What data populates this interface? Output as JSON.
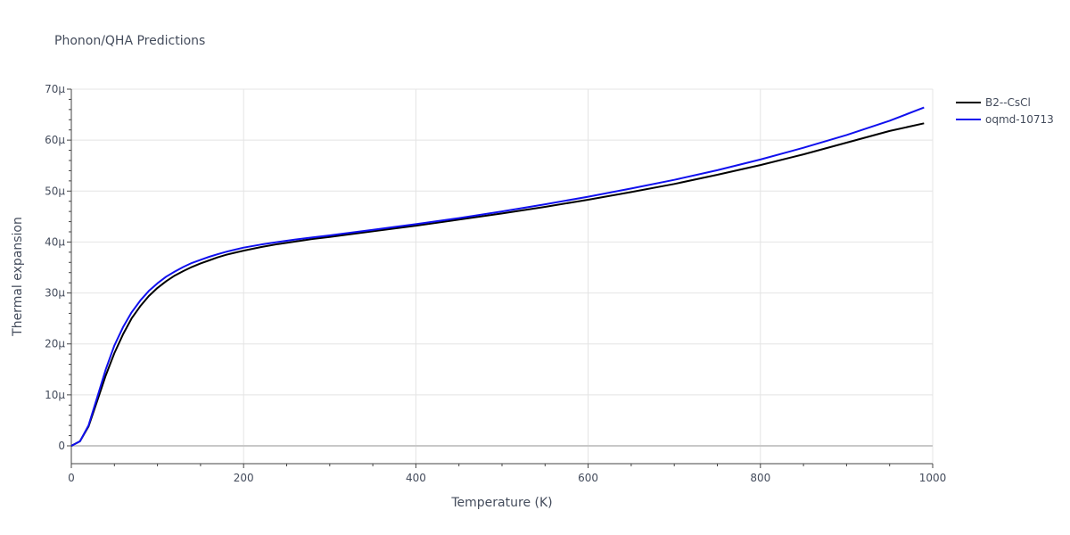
{
  "chart_data": {
    "type": "line",
    "title": "Phonon/QHA Predictions",
    "xlabel": "Temperature (K)",
    "ylabel": "Thermal expansion",
    "xlim": [
      0,
      1000
    ],
    "ylim": [
      -3.5,
      70
    ],
    "x_ticks": [
      0,
      200,
      400,
      600,
      800,
      1000
    ],
    "x_tick_labels": [
      "0",
      "200",
      "400",
      "600",
      "800",
      "1000"
    ],
    "y_ticks": [
      0,
      10,
      20,
      30,
      40,
      50,
      60,
      70
    ],
    "y_tick_labels": [
      "0",
      "10μ",
      "20μ",
      "30μ",
      "40μ",
      "50μ",
      "60μ",
      "70μ"
    ],
    "grid": true,
    "legend_position": "top-right",
    "series": [
      {
        "name": "B2--CsCl",
        "color": "#000000",
        "x": [
          0,
          10,
          20,
          30,
          40,
          50,
          60,
          70,
          80,
          90,
          100,
          110,
          120,
          130,
          140,
          150,
          160,
          170,
          180,
          190,
          200,
          220,
          240,
          260,
          280,
          300,
          350,
          400,
          450,
          500,
          550,
          600,
          650,
          700,
          750,
          800,
          850,
          900,
          950,
          990
        ],
        "y": [
          0,
          0.9,
          3.8,
          8.8,
          13.8,
          18.2,
          21.9,
          25.0,
          27.4,
          29.4,
          31.0,
          32.3,
          33.4,
          34.3,
          35.1,
          35.8,
          36.4,
          37.0,
          37.5,
          37.9,
          38.3,
          39.0,
          39.6,
          40.1,
          40.6,
          41.0,
          42.1,
          43.2,
          44.4,
          45.6,
          46.9,
          48.3,
          49.8,
          51.4,
          53.2,
          55.1,
          57.2,
          59.5,
          61.8,
          63.3
        ]
      },
      {
        "name": "oqmd-10713",
        "color": "#1010ee",
        "x": [
          0,
          10,
          20,
          30,
          40,
          50,
          60,
          70,
          80,
          90,
          100,
          110,
          120,
          130,
          140,
          150,
          160,
          170,
          180,
          190,
          200,
          220,
          240,
          260,
          280,
          300,
          350,
          400,
          450,
          500,
          550,
          600,
          650,
          700,
          750,
          800,
          850,
          900,
          950,
          990
        ],
        "y": [
          0,
          0.9,
          4.0,
          9.5,
          15.0,
          19.7,
          23.3,
          26.2,
          28.5,
          30.4,
          31.9,
          33.2,
          34.2,
          35.1,
          35.9,
          36.5,
          37.1,
          37.6,
          38.1,
          38.5,
          38.9,
          39.5,
          40.0,
          40.5,
          40.9,
          41.3,
          42.4,
          43.5,
          44.7,
          46.0,
          47.4,
          48.9,
          50.5,
          52.2,
          54.1,
          56.2,
          58.5,
          61.0,
          63.8,
          66.4
        ]
      }
    ]
  }
}
